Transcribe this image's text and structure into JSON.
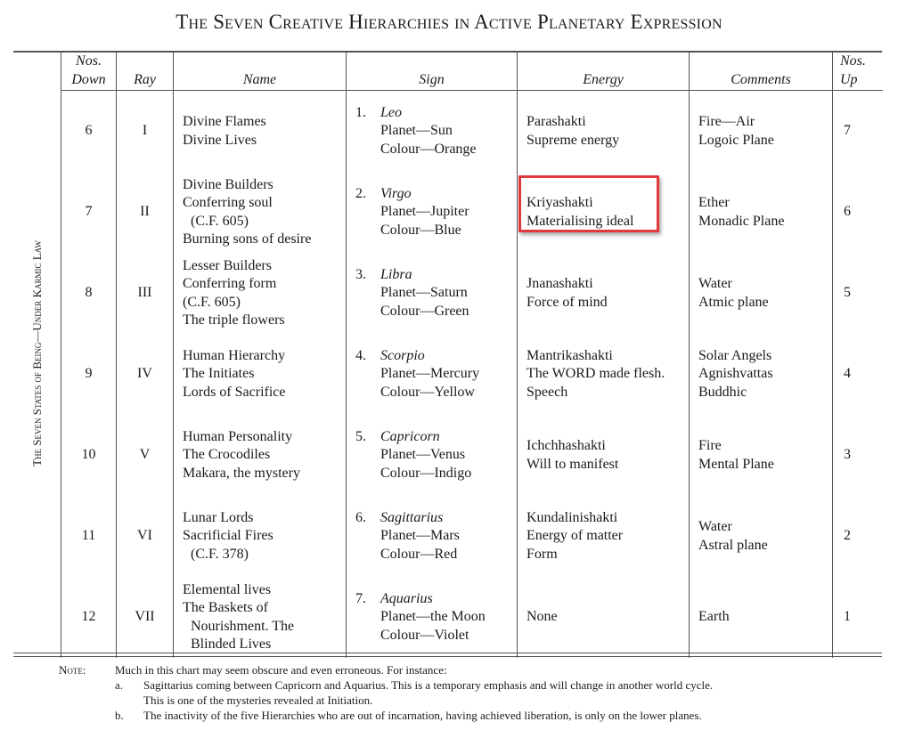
{
  "title": "The Seven Creative Hierarchies in Active Planetary Expression",
  "side_label": "The Seven States of Being—Under Karmic Law",
  "headers": {
    "down": [
      "Nos.",
      "Down"
    ],
    "ray": "Ray",
    "name": "Name",
    "sign": "Sign",
    "energy": "Energy",
    "comments": "Comments",
    "up": [
      "Nos.",
      "Up"
    ]
  },
  "rows": [
    {
      "down": "6",
      "ray": "I",
      "name": [
        "Divine Flames",
        "Divine Lives"
      ],
      "sign_num": "1.",
      "sign": "Leo",
      "planet": "Planet—Sun",
      "colour": "Colour—Orange",
      "energy": [
        "Parashakti",
        "Supreme energy"
      ],
      "comments": [
        "Fire—Air",
        "Logoic Plane"
      ],
      "up": "7"
    },
    {
      "down": "7",
      "ray": "II",
      "name": [
        "Divine Builders",
        "Conferring soul",
        "(C.F. 605)",
        "Burning sons of desire"
      ],
      "sign_num": "2.",
      "sign": "Virgo",
      "planet": "Planet—Jupiter",
      "colour": "Colour—Blue",
      "energy": [
        "Kriyashakti",
        "Materialising ideal"
      ],
      "comments": [
        "Ether",
        "Monadic Plane"
      ],
      "up": "6"
    },
    {
      "down": "8",
      "ray": "III",
      "name": [
        "Lesser Builders",
        "Conferring form",
        "(C.F. 605)",
        "The triple flowers"
      ],
      "sign_num": "3.",
      "sign": "Libra",
      "planet": "Planet—Saturn",
      "colour": "Colour—Green",
      "energy": [
        "Jnanashakti",
        "Force of mind"
      ],
      "comments": [
        "Water",
        "Atmic plane"
      ],
      "up": "5"
    },
    {
      "down": "9",
      "ray": "IV",
      "name": [
        "Human Hierarchy",
        "The Initiates",
        "Lords of Sacrifice"
      ],
      "sign_num": "4.",
      "sign": "Scorpio",
      "planet": "Planet—Mercury",
      "colour": "Colour—Yellow",
      "energy": [
        "Mantrikashakti",
        "The WORD made flesh.",
        "Speech"
      ],
      "comments": [
        "Solar Angels",
        "Agnishvattas",
        "Buddhic"
      ],
      "up": "4"
    },
    {
      "down": "10",
      "ray": "V",
      "name": [
        "Human Personality",
        "The Crocodiles",
        "Makara, the mystery"
      ],
      "sign_num": "5.",
      "sign": "Capricorn",
      "planet": "Planet—Venus",
      "colour": "Colour—Indigo",
      "energy": [
        "Ichchhashakti",
        "Will to manifest"
      ],
      "comments": [
        "Fire",
        "Mental Plane"
      ],
      "up": "3"
    },
    {
      "down": "11",
      "ray": "VI",
      "name": [
        "Lunar Lords",
        "Sacrificial Fires",
        "(C.F. 378)"
      ],
      "sign_num": "6.",
      "sign": "Sagittarius",
      "planet": "Planet—Mars",
      "colour": "Colour—Red",
      "energy": [
        "Kundalinishakti",
        "Energy of matter",
        "Form"
      ],
      "comments": [
        "Water",
        "Astral plane"
      ],
      "up": "2"
    },
    {
      "down": "12",
      "ray": "VII",
      "name": [
        "Elemental lives",
        "The Baskets of",
        "Nourishment. The",
        "Blinded Lives"
      ],
      "sign_num": "7.",
      "sign": "Aquarius",
      "planet": "Planet—the Moon",
      "colour": "Colour—Violet",
      "energy": [
        "None"
      ],
      "comments": [
        "Earth"
      ],
      "up": "1"
    }
  ],
  "highlight_color": "#e0393e",
  "notes": {
    "label": "Note:",
    "intro": "Much in this chart may seem obscure and even erroneous.  For instance:",
    "items": [
      {
        "key": "a.",
        "lines": [
          "Sagittarius coming between Capricorn and Aquarius.  This is a temporary emphasis and will change in another world cycle.",
          "This is one of the mysteries revealed at Initiation."
        ]
      },
      {
        "key": "b.",
        "lines": [
          "The inactivity of the five Hierarchies who are out of incarnation, having achieved liberation, is only on the lower planes."
        ]
      }
    ]
  }
}
